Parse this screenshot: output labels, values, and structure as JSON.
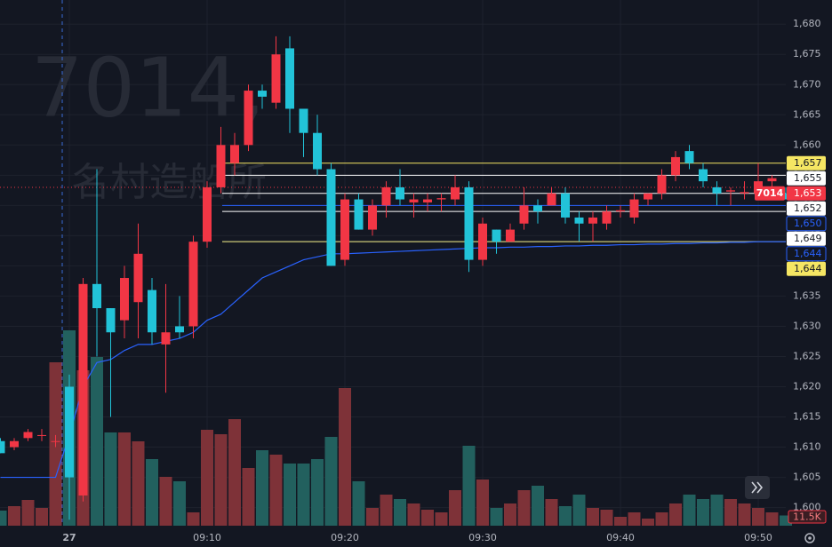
{
  "chart_data": {
    "type": "candlestick",
    "watermark_symbol": "7014,",
    "watermark_name": "名村造船所",
    "categories": [
      null,
      null,
      null,
      null,
      null,
      "27",
      null,
      null,
      null,
      null,
      null,
      null,
      null,
      null,
      null,
      "09:10",
      null,
      null,
      null,
      null,
      null,
      null,
      null,
      null,
      null,
      "09:20",
      null,
      null,
      null,
      null,
      null,
      null,
      null,
      null,
      null,
      "09:30",
      null,
      null,
      null,
      null,
      null,
      null,
      null,
      null,
      null,
      "09:40",
      null,
      null,
      null,
      null,
      null,
      null,
      null,
      null,
      null,
      "09:50",
      null,
      null
    ],
    "open": [
      1611,
      1610,
      1611.5,
      1612,
      1611,
      1620,
      1602,
      1637,
      1633,
      1631,
      1634,
      1636,
      1627,
      1630,
      1630,
      1644,
      1653,
      1657,
      1660,
      1669,
      1667,
      1676,
      1666,
      1662,
      1656,
      1641,
      1651,
      1646,
      1650,
      1653,
      1650.5,
      1650.5,
      1651,
      1651,
      1653,
      1641,
      1646,
      1644,
      1647,
      1650,
      1650,
      1652,
      1648,
      1647,
      1647,
      1649,
      1648,
      1651,
      1652,
      1655,
      1659,
      1656,
      1653,
      1652.3,
      1652,
      1652,
      1654,
      1652
    ],
    "high": [
      1611.5,
      1611.5,
      1613,
      1613,
      1612,
      1622,
      1638,
      1656,
      1633,
      1640,
      1647,
      1638,
      1637,
      1635,
      1645,
      1654,
      1663,
      1662,
      1670,
      1670,
      1678,
      1678,
      1666,
      1665,
      1657,
      1652,
      1652,
      1651,
      1654,
      1656,
      1652,
      1652,
      1652,
      1655,
      1654,
      1648,
      1646,
      1647,
      1653,
      1651,
      1653,
      1653,
      1649,
      1649,
      1650,
      1650,
      1652,
      1652,
      1656,
      1659,
      1660,
      1657,
      1654,
      1653,
      1654,
      1657,
      1655,
      1653
    ],
    "low": [
      1609,
      1609.5,
      1611,
      1611,
      1610,
      1598,
      1601,
      1625,
      1615,
      1628,
      1628,
      1627,
      1619,
      1628,
      1628,
      1643,
      1652,
      1655,
      1659,
      1666,
      1666,
      1662,
      1658,
      1655,
      1640,
      1640,
      1646,
      1645,
      1648,
      1650,
      1648,
      1649,
      1649,
      1650,
      1639,
      1640,
      1642,
      1644,
      1646,
      1647,
      1650,
      1647,
      1644,
      1644,
      1646,
      1648,
      1647,
      1650,
      1651,
      1654,
      1656,
      1653,
      1650,
      1650,
      1651,
      1651,
      1653,
      1651
    ],
    "close": [
      1609,
      1611,
      1612.5,
      1612,
      1611,
      1605,
      1637,
      1633,
      1629,
      1638,
      1642,
      1629,
      1629,
      1629,
      1644,
      1653,
      1660,
      1660,
      1669,
      1668,
      1675,
      1666,
      1662,
      1656,
      1640,
      1651,
      1646,
      1650,
      1653,
      1651,
      1651,
      1651,
      1651.2,
      1653,
      1641,
      1647,
      1644,
      1646,
      1650,
      1649,
      1652,
      1648,
      1647,
      1648,
      1649,
      1649.2,
      1651,
      1652,
      1655,
      1658,
      1657,
      1654,
      1652,
      1652.5,
      1652.2,
      1654,
      1654.5,
      1651
    ],
    "volume": [
      17,
      22,
      29,
      20,
      184,
      220,
      175,
      190,
      105,
      105,
      95,
      75,
      55,
      50,
      15,
      108,
      103,
      120,
      65,
      85,
      80,
      70,
      70,
      75,
      100,
      155,
      50,
      20,
      35,
      30,
      25,
      18,
      15,
      40,
      90,
      52,
      20,
      25,
      40,
      45,
      30,
      22,
      35,
      20,
      18,
      10,
      15,
      8,
      15,
      25,
      35,
      30,
      35,
      30,
      25,
      20,
      15,
      11.5
    ],
    "last_volume_label": "11.5K",
    "ma": [
      1605,
      1605,
      1605,
      1605,
      1605,
      1612,
      1620,
      1624,
      1624.5,
      1626,
      1627,
      1627,
      1627.5,
      1628,
      1629,
      1631,
      1632,
      1634,
      1636,
      1638,
      1639,
      1640,
      1641,
      1641.5,
      1642,
      1642,
      1642.1,
      1642.2,
      1642.3,
      1642.4,
      1642.5,
      1642.6,
      1642.7,
      1642.8,
      1642.9,
      1643,
      1643,
      1643.1,
      1643.1,
      1643.2,
      1643.2,
      1643.3,
      1643.3,
      1643.4,
      1643.4,
      1643.5,
      1643.5,
      1643.6,
      1643.6,
      1643.7,
      1643.7,
      1643.8,
      1643.8,
      1643.9,
      1643.9,
      1644,
      1644,
      1644
    ],
    "ma_color": "#2962ff",
    "up_color": "#f23645",
    "down_color": "#22c3d8",
    "up_volume_color": "#7e3238",
    "down_volume_color": "#22605e",
    "ylim": [
      1597,
      1684
    ],
    "yticks": [
      {
        "value": 1600,
        "label": "1,600"
      },
      {
        "value": 1605,
        "label": "1,605"
      },
      {
        "value": 1610,
        "label": "1,610"
      },
      {
        "value": 1615,
        "label": "1,615"
      },
      {
        "value": 1620,
        "label": "1,620"
      },
      {
        "value": 1625,
        "label": "1,625"
      },
      {
        "value": 1630,
        "label": "1,630"
      },
      {
        "value": 1635,
        "label": "1,635"
      },
      {
        "value": 1640,
        "label": "1,640"
      },
      {
        "value": 1645,
        "label": "1,645"
      },
      {
        "value": 1650,
        "label": "1,650"
      },
      {
        "value": 1655,
        "label": "1,655"
      },
      {
        "value": 1660,
        "label": "1,660"
      },
      {
        "value": 1665,
        "label": "1,665"
      },
      {
        "value": 1670,
        "label": "1,670"
      },
      {
        "value": 1675,
        "label": "1,675"
      },
      {
        "value": 1680,
        "label": "1,680"
      }
    ],
    "grid": true,
    "current_symbol": "7014",
    "levels": [
      {
        "value": 1657,
        "label": "1,657",
        "color": "#f5e663",
        "text_color": "#131722"
      },
      {
        "value": 1655,
        "label": "1,655",
        "color": "#ffffff",
        "text_color": "#131722"
      },
      {
        "value": 1653,
        "label": "1,653",
        "color": "#f23645",
        "text_color": "#ffffff",
        "current": true
      },
      {
        "value": 1652,
        "label": "1,652",
        "color": "#ffffff",
        "text_color": "#131722"
      },
      {
        "value": 1650,
        "label": "1,650",
        "color": "#131722",
        "text_color": "#2962ff",
        "line_color": "#2962ff"
      },
      {
        "value": 1649,
        "label": "1,649",
        "color": "#ffffff",
        "text_color": "#131722"
      },
      {
        "value": 1644,
        "label": "1,644",
        "color": "#131722",
        "text_color": "#2962ff",
        "line_color": "#2962ff"
      },
      {
        "value": 1644,
        "label": "1,644",
        "color": "#f5e663",
        "text_color": "#131722"
      }
    ]
  }
}
